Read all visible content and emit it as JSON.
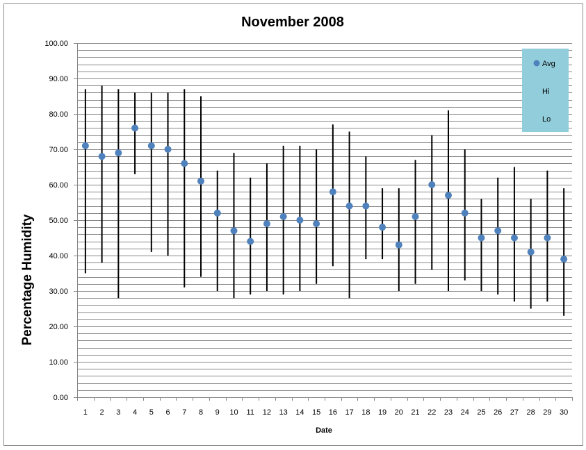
{
  "chart_data": {
    "type": "scatter",
    "title": "November 2008",
    "xlabel": "Date",
    "ylabel": "Percentage Humidity",
    "ylim": [
      0,
      100
    ],
    "y_major_step": 10,
    "y_minor_step": 2,
    "grid": true,
    "legend_position": "top-right",
    "legend_background": "#92cddc",
    "marker_color": "#4f81bd",
    "line_color": "#000000",
    "x": [
      1,
      2,
      3,
      4,
      5,
      6,
      7,
      8,
      9,
      10,
      11,
      12,
      13,
      14,
      15,
      16,
      17,
      18,
      19,
      20,
      21,
      22,
      23,
      24,
      25,
      26,
      27,
      28,
      29,
      30
    ],
    "series": [
      {
        "name": "Avg",
        "values": [
          71,
          68,
          69,
          76,
          71,
          70,
          66,
          61,
          52,
          47,
          44,
          49,
          51,
          50,
          49,
          58,
          54,
          54,
          48,
          43,
          51,
          60,
          57,
          52,
          45,
          47,
          45,
          41,
          45,
          39
        ]
      },
      {
        "name": "Hi",
        "values": [
          87,
          88,
          87,
          86,
          86,
          86,
          87,
          85,
          64,
          69,
          62,
          66,
          71,
          71,
          70,
          77,
          75,
          68,
          59,
          59,
          67,
          74,
          81,
          70,
          56,
          62,
          65,
          56,
          64,
          59
        ]
      },
      {
        "name": "Lo",
        "values": [
          35,
          38,
          28,
          63,
          41,
          40,
          31,
          34,
          30,
          28,
          29,
          30,
          29,
          30,
          32,
          37,
          28,
          39,
          39,
          30,
          32,
          36,
          30,
          33,
          30,
          29,
          27,
          25,
          27,
          23
        ]
      }
    ]
  }
}
